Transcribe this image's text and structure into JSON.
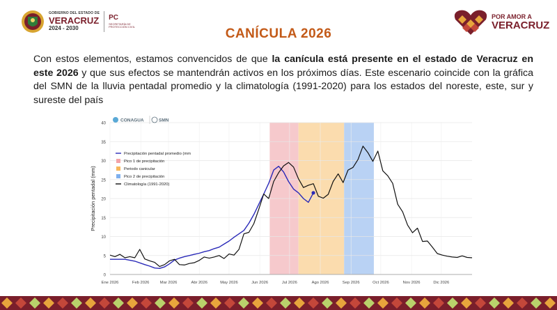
{
  "header": {
    "gov_line1": "GOBIERNO DEL ESTADO DE",
    "gov_line2": "VERACRUZ",
    "gov_line3": "2024 - 2030",
    "pc_label": "PC",
    "pc_sub": "SECRETARÍA DE PROTECCIÓN CIVIL",
    "brand_line1": "POR AMOR A",
    "brand_line2": "VERACRUZ"
  },
  "title": "CANÍCULA 2026",
  "paragraph": {
    "part1": "Con estos elementos, estamos convencidos de que ",
    "bold": "la canícula está presente en el estado de Veracruz en este 2026",
    "part2": " y que sus efectos se mantendrán activos en los próximos días. Este escenario coincide con la gráfica del SMN de la lluvia pentadal promedio y la climatología (1991-2020) para los estados del noreste, este, sur y sureste del país"
  },
  "colors": {
    "title": "#c35a18",
    "brand": "#7a1f2b",
    "series_blue": "#2929b8",
    "series_black": "#111111",
    "band_pico1": "#f6c9cc",
    "band_canicular": "#fbdcae",
    "band_pico2": "#b9d2f4"
  },
  "chart_logos": {
    "conagua": "CONAGUA",
    "smn": "SMN"
  },
  "chart_data": {
    "type": "line",
    "ylabel": "Precipitación pentadal (mm)",
    "xlabel": "",
    "ylim": [
      0,
      40
    ],
    "y_ticks": [
      0,
      5,
      10,
      15,
      20,
      25,
      30,
      35,
      40
    ],
    "x_range": [
      0,
      365
    ],
    "x_ticks": [
      {
        "day": 0,
        "label": "Ene 2026"
      },
      {
        "day": 31,
        "label": "Feb 2026"
      },
      {
        "day": 59,
        "label": "Mar 2026"
      },
      {
        "day": 90,
        "label": "Abr 2026"
      },
      {
        "day": 120,
        "label": "May 2026"
      },
      {
        "day": 151,
        "label": "Jun 2026"
      },
      {
        "day": 181,
        "label": "Jul 2026"
      },
      {
        "day": 212,
        "label": "Ago 2026"
      },
      {
        "day": 243,
        "label": "Sep 2026"
      },
      {
        "day": 273,
        "label": "Oct 2026"
      },
      {
        "day": 304,
        "label": "Nov 2026"
      },
      {
        "day": 334,
        "label": "Dic 2026"
      }
    ],
    "grid": true,
    "legend_position": "top-left",
    "bands": [
      {
        "name": "Pico 1 de precipitación",
        "start": 161,
        "end": 190,
        "color": "#f6c9cc"
      },
      {
        "name": "Periodo canicular",
        "start": 190,
        "end": 236,
        "color": "#fbdcae"
      },
      {
        "name": "Pico 2 de precipitación",
        "start": 236,
        "end": 266,
        "color": "#b9d2f4"
      }
    ],
    "series": [
      {
        "name": "Precipitación pentadal promedio (mm",
        "color": "#2929b8",
        "x": [
          0,
          15,
          25,
          35,
          40,
          45,
          50,
          55,
          60,
          65,
          70,
          75,
          80,
          85,
          90,
          95,
          100,
          105,
          110,
          115,
          120,
          125,
          130,
          135,
          140,
          145,
          150,
          155,
          160,
          165,
          170,
          175,
          180,
          185,
          190,
          195,
          200,
          205
        ],
        "y": [
          4.0,
          4.0,
          3.5,
          2.6,
          2.2,
          1.7,
          1.6,
          2.0,
          2.8,
          3.8,
          4.3,
          4.7,
          5.0,
          5.3,
          5.6,
          6.0,
          6.3,
          6.8,
          7.2,
          8.0,
          8.8,
          9.8,
          10.7,
          11.6,
          13.5,
          15.8,
          18.5,
          21.2,
          24.0,
          27.5,
          28.5,
          27.0,
          24.5,
          22.5,
          21.5,
          20.0,
          19.0,
          21.5
        ],
        "marker_last": true
      },
      {
        "name": "Climatología (1991-2020)",
        "color": "#111111",
        "x": [
          0,
          5,
          10,
          15,
          20,
          25,
          30,
          35,
          40,
          45,
          50,
          55,
          60,
          65,
          70,
          75,
          80,
          85,
          90,
          95,
          100,
          105,
          110,
          115,
          120,
          125,
          130,
          135,
          140,
          145,
          150,
          155,
          160,
          165,
          170,
          175,
          180,
          185,
          190,
          195,
          200,
          205,
          210,
          215,
          220,
          225,
          230,
          235,
          240,
          245,
          250,
          255,
          260,
          265,
          270,
          275,
          280,
          285,
          290,
          295,
          300,
          305,
          310,
          315,
          320,
          325,
          330,
          335,
          340,
          345,
          350,
          355,
          360,
          365
        ],
        "y": [
          5.1,
          4.7,
          5.3,
          4.4,
          4.7,
          4.4,
          6.6,
          4.1,
          3.6,
          3.2,
          2.1,
          2.6,
          3.6,
          4.0,
          2.6,
          2.5,
          2.9,
          3.1,
          3.7,
          4.6,
          4.3,
          4.6,
          5.0,
          4.2,
          5.4,
          5.1,
          6.6,
          10.7,
          11.1,
          13.4,
          17.2,
          21.2,
          20.0,
          24.5,
          26.8,
          28.6,
          29.5,
          28.3,
          25.2,
          22.9,
          23.5,
          23.9,
          20.6,
          20.1,
          21.1,
          24.5,
          26.5,
          24.2,
          27.5,
          28.2,
          30.3,
          33.8,
          32.1,
          29.8,
          32.5,
          27.3,
          26.0,
          24.0,
          18.5,
          16.5,
          13.0,
          11.0,
          12.2,
          8.7,
          8.8,
          7.2,
          5.5,
          5.1,
          4.8,
          4.6,
          4.5,
          4.9,
          4.5,
          4.4
        ]
      }
    ],
    "legend": [
      {
        "label": "Precipitación pentadal promedio (mm",
        "kind": "line",
        "color": "#2929b8"
      },
      {
        "label": "Pico 1 de precipitación",
        "kind": "box",
        "color": "#f3a3a8"
      },
      {
        "label": "Periodo canicular",
        "kind": "box",
        "color": "#f7b75a"
      },
      {
        "label": "Pico 2 de precipitación",
        "kind": "box",
        "color": "#7fb0ee"
      },
      {
        "label": "Climatología (1991-2020)",
        "kind": "line",
        "color": "#111111"
      }
    ]
  }
}
